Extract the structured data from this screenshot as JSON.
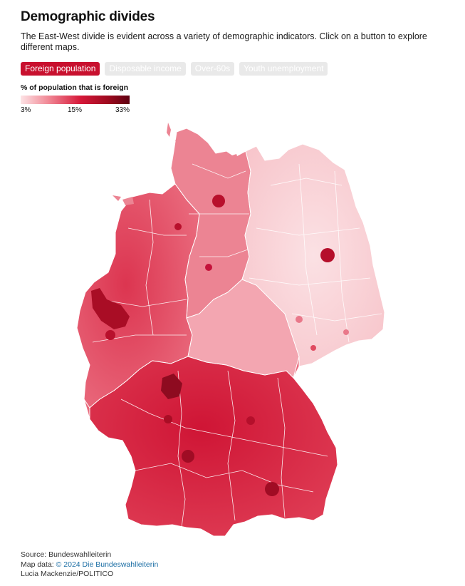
{
  "header": {
    "title": "Demographic divides",
    "subtitle": "The East-West divide is evident across a variety of demographic indicators. Click on a button to explore different maps."
  },
  "tabs": [
    {
      "label": "Foreign population",
      "active": true
    },
    {
      "label": "Disposable income",
      "active": false
    },
    {
      "label": "Over-60s",
      "active": false
    },
    {
      "label": "Youth unemployment",
      "active": false
    }
  ],
  "legend": {
    "title": "% of population that is foreign",
    "ticks": [
      "3%",
      "15%",
      "33%"
    ],
    "colors": [
      "#fde3e5",
      "#f18a97",
      "#d61839",
      "#9e0a1f",
      "#5f0011"
    ]
  },
  "map": {
    "region": "Germany",
    "colors": {
      "lightest": "#fbdde0",
      "light": "#f7b9c0",
      "medium": "#ee7b8a",
      "strong": "#e04a60",
      "deep": "#d21a3a",
      "darkest": "#8e0b20",
      "border": "#ffffff"
    }
  },
  "footer": {
    "source": "Source: Bundeswahlleiterin",
    "map_data_prefix": "Map data: ",
    "map_data_link": "© 2024 Die Bundeswahlleiterin",
    "credit": "Lucia Mackenzie/POLITICO"
  }
}
